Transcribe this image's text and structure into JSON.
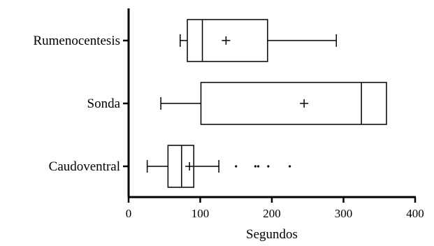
{
  "chart_data": {
    "type": "boxplot",
    "orientation": "horizontal",
    "title": "",
    "xlabel": "Segundos",
    "ylabel": "",
    "xlim": [
      0,
      400
    ],
    "xticks": [
      0,
      100,
      200,
      300,
      400
    ],
    "xtick_labels": [
      "0",
      "100",
      "200",
      "300",
      "400"
    ],
    "grid": false,
    "categories": [
      "Rumenocentesis",
      "Sonda",
      "Caudoventral"
    ],
    "series": [
      {
        "category": "Rumenocentesis",
        "whisker_low": 72,
        "q1": 82,
        "median": 103,
        "q3": 194,
        "whisker_high": 290,
        "mean": 136,
        "outliers": []
      },
      {
        "category": "Sonda",
        "whisker_low": 45,
        "q1": 101,
        "median": 325,
        "q3": 360,
        "whisker_high": 360,
        "mean": 245,
        "outliers": []
      },
      {
        "category": "Caudoventral",
        "whisker_low": 26,
        "q1": 55,
        "median": 74,
        "q3": 91,
        "whisker_high": 126,
        "mean": 85,
        "outliers": [
          150,
          177,
          181,
          195,
          225
        ]
      }
    ],
    "colors": {
      "line": "#000000",
      "background": "#ffffff"
    }
  }
}
